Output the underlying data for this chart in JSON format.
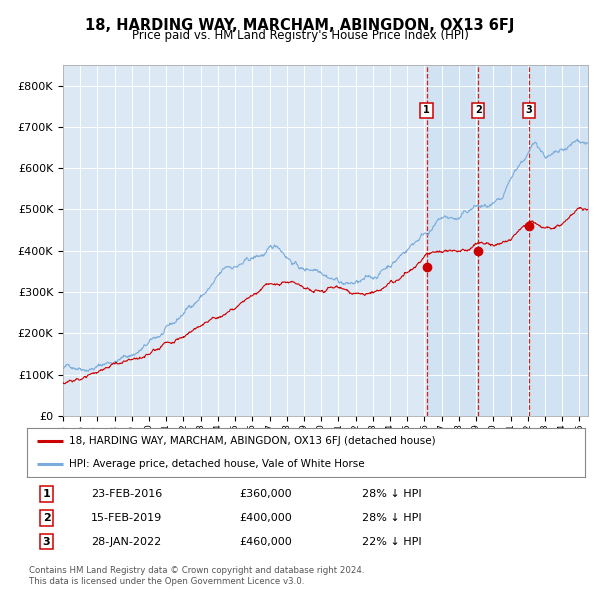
{
  "title": "18, HARDING WAY, MARCHAM, ABINGDON, OX13 6FJ",
  "subtitle": "Price paid vs. HM Land Registry's House Price Index (HPI)",
  "legend_red": "18, HARDING WAY, MARCHAM, ABINGDON, OX13 6FJ (detached house)",
  "legend_blue": "HPI: Average price, detached house, Vale of White Horse",
  "footnote1": "Contains HM Land Registry data © Crown copyright and database right 2024.",
  "footnote2": "This data is licensed under the Open Government Licence v3.0.",
  "transactions": [
    {
      "num": 1,
      "date": "23-FEB-2016",
      "price": 360000,
      "pct": "28%",
      "dir": "↓",
      "x_year": 2016.12
    },
    {
      "num": 2,
      "date": "15-FEB-2019",
      "price": 400000,
      "pct": "28%",
      "dir": "↓",
      "x_year": 2019.12
    },
    {
      "num": 3,
      "date": "28-JAN-2022",
      "price": 460000,
      "pct": "22%",
      "dir": "↓",
      "x_year": 2022.07
    }
  ],
  "background_color": "#dce9f5",
  "line_color_red": "#cc0000",
  "line_color_blue": "#7aabdb",
  "ylim": [
    0,
    850000
  ],
  "xlim_start": 1995.0,
  "xlim_end": 2025.5,
  "yticks": [
    0,
    100000,
    200000,
    300000,
    400000,
    500000,
    600000,
    700000,
    800000
  ],
  "ytick_labels": [
    "£0",
    "£100K",
    "£200K",
    "£300K",
    "£400K",
    "£500K",
    "£600K",
    "£700K",
    "£800K"
  ],
  "xticks": [
    1995,
    1996,
    1997,
    1998,
    1999,
    2000,
    2001,
    2002,
    2003,
    2004,
    2005,
    2006,
    2007,
    2008,
    2009,
    2010,
    2011,
    2012,
    2013,
    2014,
    2015,
    2016,
    2017,
    2018,
    2019,
    2020,
    2021,
    2022,
    2023,
    2024,
    2025
  ],
  "num_points": 1083,
  "noise_seed": 42,
  "hpi_base": [
    [
      1995.0,
      115000
    ],
    [
      1997.0,
      140000
    ],
    [
      1999.0,
      175000
    ],
    [
      2001.5,
      240000
    ],
    [
      2003.0,
      310000
    ],
    [
      2004.5,
      370000
    ],
    [
      2006.0,
      390000
    ],
    [
      2007.5,
      415000
    ],
    [
      2009.0,
      370000
    ],
    [
      2010.0,
      385000
    ],
    [
      2011.5,
      365000
    ],
    [
      2013.0,
      370000
    ],
    [
      2014.5,
      430000
    ],
    [
      2016.0,
      500000
    ],
    [
      2017.0,
      535000
    ],
    [
      2018.0,
      530000
    ],
    [
      2019.0,
      555000
    ],
    [
      2020.5,
      540000
    ],
    [
      2021.5,
      620000
    ],
    [
      2022.5,
      670000
    ],
    [
      2023.0,
      645000
    ],
    [
      2024.0,
      640000
    ],
    [
      2025.0,
      660000
    ]
  ],
  "red_base": [
    [
      1995.0,
      80000
    ],
    [
      1996.5,
      85000
    ],
    [
      1997.5,
      100000
    ],
    [
      1999.0,
      120000
    ],
    [
      2001.0,
      165000
    ],
    [
      2002.5,
      200000
    ],
    [
      2004.0,
      225000
    ],
    [
      2005.5,
      250000
    ],
    [
      2007.0,
      285000
    ],
    [
      2008.5,
      275000
    ],
    [
      2009.5,
      250000
    ],
    [
      2011.0,
      255000
    ],
    [
      2012.0,
      245000
    ],
    [
      2013.0,
      255000
    ],
    [
      2014.5,
      305000
    ],
    [
      2015.5,
      330000
    ],
    [
      2016.12,
      360000
    ],
    [
      2017.0,
      365000
    ],
    [
      2018.0,
      375000
    ],
    [
      2019.12,
      400000
    ],
    [
      2020.0,
      385000
    ],
    [
      2021.0,
      400000
    ],
    [
      2022.07,
      460000
    ],
    [
      2023.0,
      450000
    ],
    [
      2024.0,
      465000
    ],
    [
      2025.0,
      500000
    ]
  ]
}
